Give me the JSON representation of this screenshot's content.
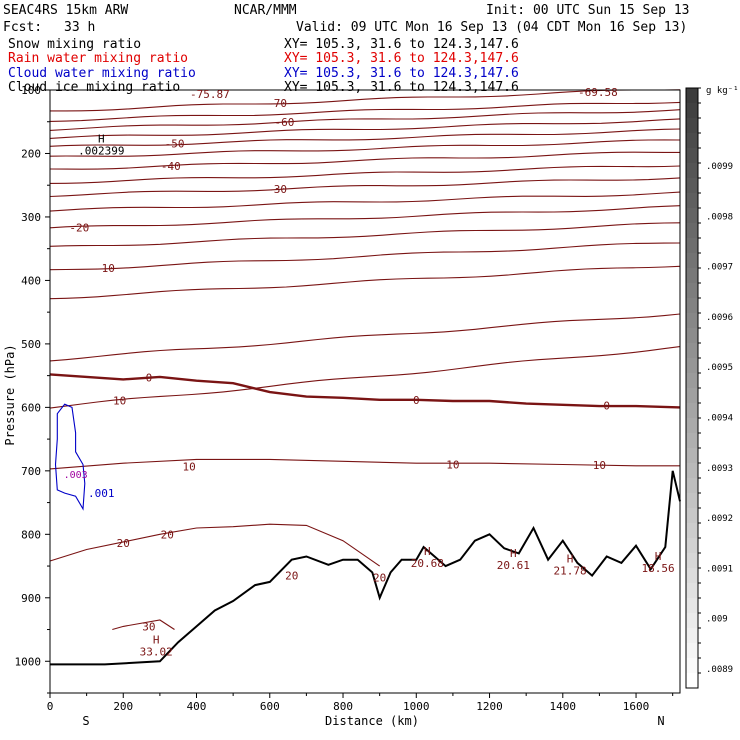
{
  "header": {
    "model": "SEAC4RS 15km ARW",
    "center": "NCAR/MMM",
    "init": "Init: 00 UTC Sun 15 Sep 13",
    "fcst_label": "Fcst:",
    "fcst_value": "33 h",
    "valid": "Valid: 09 UTC Mon 16 Sep 13 (04 CDT Mon 16 Sep 13)"
  },
  "fields": [
    {
      "name": "Snow mixing ratio",
      "xy": "XY= 105.3, 31.6 to 124.3,147.6",
      "color": "#000000"
    },
    {
      "name": "Rain water mixing ratio",
      "xy": "XY= 105.3, 31.6 to 124.3,147.6",
      "color": "#e00000"
    },
    {
      "name": "Cloud water mixing ratio",
      "xy": "XY= 105.3, 31.6 to 124.3,147.6",
      "color": "#0000c8"
    },
    {
      "name": "Cloud ice mixing ratio",
      "xy": "XY= 105.3, 31.6 to 124.3,147.6",
      "color": "#000000"
    }
  ],
  "colorbar": {
    "unit": "g kg⁻¹",
    "labels": [
      ".0099",
      ".0098",
      ".0097",
      ".0096",
      ".0095",
      ".0094",
      ".0093",
      ".0092",
      ".0091",
      ".009",
      ".0089"
    ]
  },
  "chart_data": {
    "type": "cross-section contour",
    "xlabel": "Distance (km)",
    "ylabel": "Pressure (hPa)",
    "x_ticks": [
      0,
      200,
      400,
      600,
      800,
      1000,
      1200,
      1400,
      1600
    ],
    "x_tick_labels": [
      "0",
      "200",
      "400",
      "600",
      "800",
      "1000",
      "1200",
      "1400",
      "1600"
    ],
    "y_ticks": [
      100,
      200,
      300,
      400,
      500,
      600,
      700,
      800,
      900,
      1000
    ],
    "y_tick_labels": [
      "100",
      "200",
      "300",
      "400",
      "500",
      "600",
      "700",
      "800",
      "900",
      "1000"
    ],
    "xlim": [
      0,
      1720
    ],
    "ylim": [
      1050,
      100
    ],
    "endpoint_labels": {
      "left": "S",
      "right": "N"
    },
    "temperature_contours": [
      {
        "value": -70,
        "label": "-70",
        "p_left": 133,
        "p_right": 98
      },
      {
        "value": -65,
        "label": "",
        "p_left": 148,
        "p_right": 118
      },
      {
        "value": -60,
        "label": "-60",
        "p_left": 162,
        "p_right": 131
      },
      {
        "value": -55,
        "label": "",
        "p_left": 176,
        "p_right": 147
      },
      {
        "value": -50,
        "label": "-50",
        "p_left": 190,
        "p_right": 163
      },
      {
        "value": -45,
        "label": "",
        "p_left": 206,
        "p_right": 179
      },
      {
        "value": -40,
        "label": "-40",
        "p_left": 225,
        "p_right": 197
      },
      {
        "value": -35,
        "label": "",
        "p_left": 246,
        "p_right": 218
      },
      {
        "value": -30,
        "label": "-30",
        "p_left": 266,
        "p_right": 238
      },
      {
        "value": -25,
        "label": "",
        "p_left": 290,
        "p_right": 262
      },
      {
        "value": -20,
        "label": "-20",
        "p_left": 318,
        "p_right": 284
      },
      {
        "value": -15,
        "label": "",
        "p_left": 348,
        "p_right": 310
      },
      {
        "value": -10,
        "label": "-10",
        "p_left": 384,
        "p_right": 340
      },
      {
        "value": -5,
        "label": "",
        "p_left": 428,
        "p_right": 376
      },
      {
        "value": 5,
        "label": "",
        "p_left": 525,
        "p_right": 452
      },
      {
        "value": 10,
        "label": "10",
        "p_left": 600,
        "p_right": 505
      }
    ],
    "zero_isotherm": {
      "value": 0,
      "label": "0",
      "x": [
        0,
        100,
        200,
        300,
        400,
        500,
        600,
        700,
        800,
        900,
        1000,
        1100,
        1200,
        1300,
        1400,
        1500,
        1600,
        1720
      ],
      "p": [
        548,
        552,
        556,
        552,
        558,
        562,
        576,
        583,
        585,
        588,
        588,
        590,
        590,
        594,
        596,
        598,
        598,
        600
      ]
    },
    "lower_contours": [
      {
        "value": 10,
        "label": "10",
        "x": [
          0,
          200,
          400,
          600,
          800,
          1000,
          1200,
          1400,
          1600,
          1720
        ],
        "p": [
          697,
          688,
          682,
          682,
          685,
          688,
          688,
          690,
          692,
          692
        ]
      },
      {
        "value": 20,
        "label": "20",
        "x": [
          0,
          100,
          200,
          300,
          400,
          500,
          600,
          700,
          800,
          900
        ],
        "p": [
          842,
          824,
          812,
          800,
          790,
          788,
          784,
          786,
          810,
          850
        ]
      },
      {
        "value": 30,
        "label": "30",
        "x": [
          170,
          200,
          300,
          340
        ],
        "p": [
          950,
          945,
          935,
          950
        ]
      }
    ],
    "terrain": {
      "x": [
        0,
        150,
        300,
        350,
        400,
        450,
        500,
        560,
        600,
        660,
        700,
        760,
        800,
        840,
        880,
        900,
        930,
        960,
        1000,
        1020,
        1050,
        1080,
        1120,
        1160,
        1200,
        1240,
        1280,
        1320,
        1360,
        1400,
        1440,
        1480,
        1520,
        1560,
        1600,
        1640,
        1680,
        1700,
        1720
      ],
      "p": [
        1005,
        1005,
        1000,
        970,
        945,
        920,
        905,
        880,
        875,
        840,
        835,
        848,
        840,
        840,
        860,
        900,
        860,
        840,
        840,
        820,
        835,
        850,
        840,
        810,
        800,
        822,
        830,
        790,
        840,
        810,
        845,
        865,
        835,
        845,
        818,
        855,
        820,
        700,
        748
      ]
    },
    "maxima": [
      {
        "type": "H",
        "value": "33.02",
        "x": 290,
        "p": 985
      },
      {
        "type": "H",
        "value": "20.68",
        "x": 1030,
        "p": 845
      },
      {
        "type": "H",
        "value": "20.61",
        "x": 1265,
        "p": 848
      },
      {
        "type": "H",
        "value": "21.78",
        "x": 1420,
        "p": 857
      },
      {
        "type": "H",
        "value": "18.56",
        "x": 1660,
        "p": 853
      },
      {
        "type": "H",
        "value": ".002399",
        "x": 140,
        "p": 195
      }
    ],
    "contour_labels": [
      {
        "label": "20",
        "x": 660,
        "p": 865
      },
      {
        "label": "20",
        "x": 900,
        "p": 868
      }
    ],
    "cloud_water": {
      "label": ".001",
      "level_labels": [
        ".001",
        ".003"
      ],
      "x": [
        20,
        40,
        60,
        70,
        70,
        90,
        95,
        90,
        70,
        40,
        20,
        15,
        20
      ],
      "p": [
        610,
        595,
        600,
        640,
        670,
        690,
        720,
        760,
        740,
        735,
        730,
        690,
        650
      ]
    },
    "header_values": {
      "top_left": "-75.87",
      "top_right": "-69.58"
    }
  }
}
